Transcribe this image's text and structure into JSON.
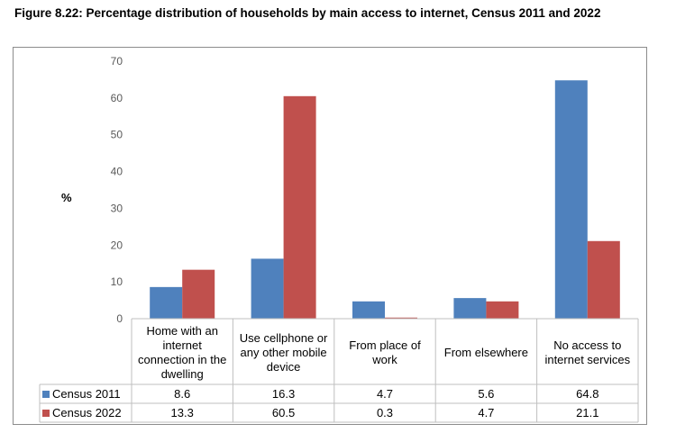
{
  "figure": {
    "title": "Figure 8.22: Percentage distribution of households by main access to internet, Census 2011 and 2022"
  },
  "chart_data": {
    "type": "bar",
    "ylabel": "%",
    "ylim": [
      0,
      70
    ],
    "yticks": [
      0,
      10,
      20,
      30,
      40,
      50,
      60,
      70
    ],
    "grid": false,
    "legend": "data-table-left",
    "categories": [
      "Home with an internet connection in the dwelling",
      "Use cellphone or any other mobile device",
      "From place of work",
      "From elsewhere",
      "No access to internet services"
    ],
    "series": [
      {
        "name": "Census 2011",
        "color": "#4f81bd",
        "values": [
          8.6,
          16.3,
          4.7,
          5.6,
          64.8
        ],
        "labels": [
          "8.6",
          "16.3",
          "4.7",
          "5.6",
          "64.8"
        ]
      },
      {
        "name": "Census 2022",
        "color": "#c0504d",
        "values": [
          13.3,
          60.5,
          0.3,
          4.7,
          21.1
        ],
        "labels": [
          "13.3",
          "60.5",
          "0.3",
          "4.7",
          "21.1"
        ]
      }
    ]
  }
}
